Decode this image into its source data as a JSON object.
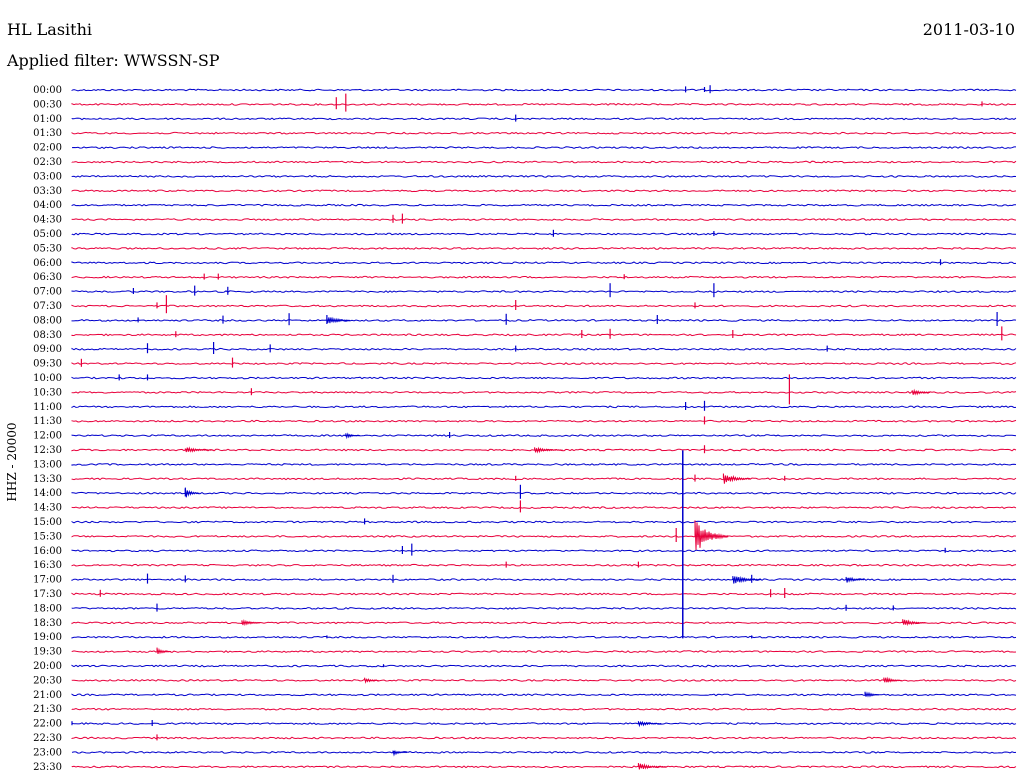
{
  "header": {
    "station": "HL Lasithi",
    "date": "2011-03-10",
    "filter": "Applied filter: WWSSN-SP"
  },
  "chart_data": {
    "type": "line",
    "ylabel": "HHZ - 20000",
    "colors": [
      "#0000cc",
      "#e8003c"
    ],
    "rows": [
      "00:00",
      "00:30",
      "01:00",
      "01:30",
      "02:00",
      "02:30",
      "03:00",
      "03:30",
      "04:00",
      "04:30",
      "05:00",
      "05:30",
      "06:00",
      "06:30",
      "07:00",
      "07:30",
      "08:00",
      "08:30",
      "09:00",
      "09:30",
      "10:00",
      "10:30",
      "11:00",
      "11:30",
      "12:00",
      "12:30",
      "13:00",
      "13:30",
      "14:00",
      "14:30",
      "15:00",
      "15:30",
      "16:00",
      "16:30",
      "17:00",
      "17:30",
      "18:00",
      "18:30",
      "19:00",
      "19:30",
      "20:00",
      "20:30",
      "21:00",
      "21:30",
      "22:00",
      "22:30",
      "23:00",
      "23:30"
    ],
    "events": [
      {
        "row": 0,
        "t": 0.65,
        "amp": 6
      },
      {
        "row": 0,
        "t": 0.67,
        "amp": 5
      },
      {
        "row": 0,
        "t": 0.676,
        "amp": 8
      },
      {
        "row": 1,
        "t": 0.28,
        "amp": 12
      },
      {
        "row": 1,
        "t": 0.29,
        "amp": 18
      },
      {
        "row": 1,
        "t": 0.964,
        "amp": 5
      },
      {
        "row": 2,
        "t": 0.47,
        "amp": 7
      },
      {
        "row": 9,
        "t": 0.34,
        "amp": 8
      },
      {
        "row": 9,
        "t": 0.35,
        "amp": 10
      },
      {
        "row": 10,
        "t": 0.51,
        "amp": 7
      },
      {
        "row": 10,
        "t": 0.68,
        "amp": 5
      },
      {
        "row": 12,
        "t": 0.92,
        "amp": 6
      },
      {
        "row": 13,
        "t": 0.14,
        "amp": 6
      },
      {
        "row": 13,
        "t": 0.155,
        "amp": 6
      },
      {
        "row": 13,
        "t": 0.585,
        "amp": 5
      },
      {
        "row": 14,
        "t": 0.065,
        "amp": 6
      },
      {
        "row": 14,
        "t": 0.13,
        "amp": 10
      },
      {
        "row": 14,
        "t": 0.165,
        "amp": 8
      },
      {
        "row": 14,
        "t": 0.57,
        "amp": 14
      },
      {
        "row": 14,
        "t": 0.68,
        "amp": 14
      },
      {
        "row": 15,
        "t": 0.09,
        "amp": 6
      },
      {
        "row": 15,
        "t": 0.1,
        "amp": 18
      },
      {
        "row": 15,
        "t": 0.47,
        "amp": 10
      },
      {
        "row": 15,
        "t": 0.66,
        "amp": 6
      },
      {
        "row": 16,
        "t": 0.07,
        "amp": 5
      },
      {
        "row": 16,
        "t": 0.16,
        "amp": 8
      },
      {
        "row": 16,
        "t": 0.23,
        "amp": 12
      },
      {
        "row": 16,
        "t": 0.27,
        "amp": 9
      },
      {
        "row": 16,
        "t": 0.46,
        "amp": 11
      },
      {
        "row": 16,
        "t": 0.62,
        "amp": 9
      },
      {
        "row": 16,
        "t": 0.98,
        "amp": 14
      },
      {
        "row": 17,
        "t": 0.11,
        "amp": 6
      },
      {
        "row": 17,
        "t": 0.54,
        "amp": 8
      },
      {
        "row": 17,
        "t": 0.57,
        "amp": 10
      },
      {
        "row": 17,
        "t": 0.7,
        "amp": 8
      },
      {
        "row": 17,
        "t": 0.985,
        "amp": 14
      },
      {
        "row": 18,
        "t": 0.08,
        "amp": 10
      },
      {
        "row": 18,
        "t": 0.15,
        "amp": 12
      },
      {
        "row": 18,
        "t": 0.21,
        "amp": 8
      },
      {
        "row": 18,
        "t": 0.47,
        "amp": 6
      },
      {
        "row": 18,
        "t": 0.8,
        "amp": 6
      },
      {
        "row": 19,
        "t": 0.01,
        "amp": 8
      },
      {
        "row": 19,
        "t": 0.17,
        "amp": 10
      },
      {
        "row": 20,
        "t": 0.05,
        "amp": 6
      },
      {
        "row": 20,
        "t": 0.08,
        "amp": 6
      },
      {
        "row": 21,
        "t": 0.19,
        "amp": 7
      },
      {
        "row": 21,
        "t": 0.76,
        "amp": 30
      },
      {
        "row": 22,
        "t": 0.65,
        "amp": 8
      },
      {
        "row": 22,
        "t": 0.67,
        "amp": 10
      },
      {
        "row": 23,
        "t": 0.67,
        "amp": 8
      },
      {
        "row": 24,
        "t": 0.4,
        "amp": 6
      },
      {
        "row": 25,
        "t": 0.67,
        "amp": 8
      },
      {
        "row": 27,
        "t": 0.47,
        "amp": 5
      },
      {
        "row": 27,
        "t": 0.66,
        "amp": 7
      },
      {
        "row": 27,
        "t": 0.755,
        "amp": 5
      },
      {
        "row": 28,
        "t": 0.12,
        "amp": 8
      },
      {
        "row": 28,
        "t": 0.475,
        "amp": 14
      },
      {
        "row": 29,
        "t": 0.475,
        "amp": 12
      },
      {
        "row": 30,
        "t": 0.31,
        "amp": 6
      },
      {
        "row": 31,
        "t": 0.64,
        "amp": 14
      },
      {
        "row": 32,
        "t": 0.35,
        "amp": 8
      },
      {
        "row": 32,
        "t": 0.36,
        "amp": 12
      },
      {
        "row": 32,
        "t": 0.925,
        "amp": 5
      },
      {
        "row": 33,
        "t": 0.46,
        "amp": 6
      },
      {
        "row": 33,
        "t": 0.6,
        "amp": 6
      },
      {
        "row": 34,
        "t": 0.08,
        "amp": 10
      },
      {
        "row": 34,
        "t": 0.12,
        "amp": 7
      },
      {
        "row": 34,
        "t": 0.34,
        "amp": 8
      },
      {
        "row": 34,
        "t": 0.72,
        "amp": 8
      },
      {
        "row": 35,
        "t": 0.03,
        "amp": 7
      },
      {
        "row": 35,
        "t": 0.74,
        "amp": 8
      },
      {
        "row": 35,
        "t": 0.755,
        "amp": 10
      },
      {
        "row": 36,
        "t": 0.09,
        "amp": 8
      },
      {
        "row": 36,
        "t": 0.82,
        "amp": 6
      },
      {
        "row": 36,
        "t": 0.87,
        "amp": 5
      },
      {
        "row": 38,
        "t": 0.27,
        "amp": 3
      },
      {
        "row": 38,
        "t": 0.72,
        "amp": 3
      },
      {
        "row": 40,
        "t": 0.33,
        "amp": 3
      },
      {
        "row": 44,
        "t": 0.0,
        "amp": 4
      },
      {
        "row": 44,
        "t": 0.085,
        "amp": 6
      },
      {
        "row": 45,
        "t": 0.09,
        "amp": 6
      }
    ],
    "bursts": [
      {
        "row": 16,
        "t": 0.27,
        "amp": 5,
        "len": 0.025
      },
      {
        "row": 21,
        "t": 0.89,
        "amp": 4,
        "len": 0.02
      },
      {
        "row": 24,
        "t": 0.29,
        "amp": 3,
        "len": 0.015
      },
      {
        "row": 25,
        "t": 0.12,
        "amp": 3,
        "len": 0.03
      },
      {
        "row": 25,
        "t": 0.49,
        "amp": 3,
        "len": 0.03
      },
      {
        "row": 27,
        "t": 0.69,
        "amp": 6,
        "len": 0.03
      },
      {
        "row": 28,
        "t": 0.12,
        "amp": 6,
        "len": 0.015
      },
      {
        "row": 31,
        "t": 0.66,
        "amp": 18,
        "len": 0.035
      },
      {
        "row": 34,
        "t": 0.7,
        "amp": 6,
        "len": 0.03
      },
      {
        "row": 34,
        "t": 0.82,
        "amp": 4,
        "len": 0.02
      },
      {
        "row": 37,
        "t": 0.18,
        "amp": 4,
        "len": 0.02
      },
      {
        "row": 37,
        "t": 0.88,
        "amp": 4,
        "len": 0.025
      },
      {
        "row": 39,
        "t": 0.09,
        "amp": 4,
        "len": 0.015
      },
      {
        "row": 41,
        "t": 0.31,
        "amp": 3,
        "len": 0.015
      },
      {
        "row": 41,
        "t": 0.86,
        "amp": 4,
        "len": 0.02
      },
      {
        "row": 42,
        "t": 0.84,
        "amp": 4,
        "len": 0.015
      },
      {
        "row": 44,
        "t": 0.6,
        "amp": 3,
        "len": 0.025
      },
      {
        "row": 46,
        "t": 0.34,
        "amp": 3,
        "len": 0.015
      },
      {
        "row": 47,
        "t": 0.6,
        "amp": 4,
        "len": 0.03
      }
    ],
    "mainshock": {
      "row": 26,
      "t": 0.647,
      "up": 14,
      "down": 174
    }
  }
}
